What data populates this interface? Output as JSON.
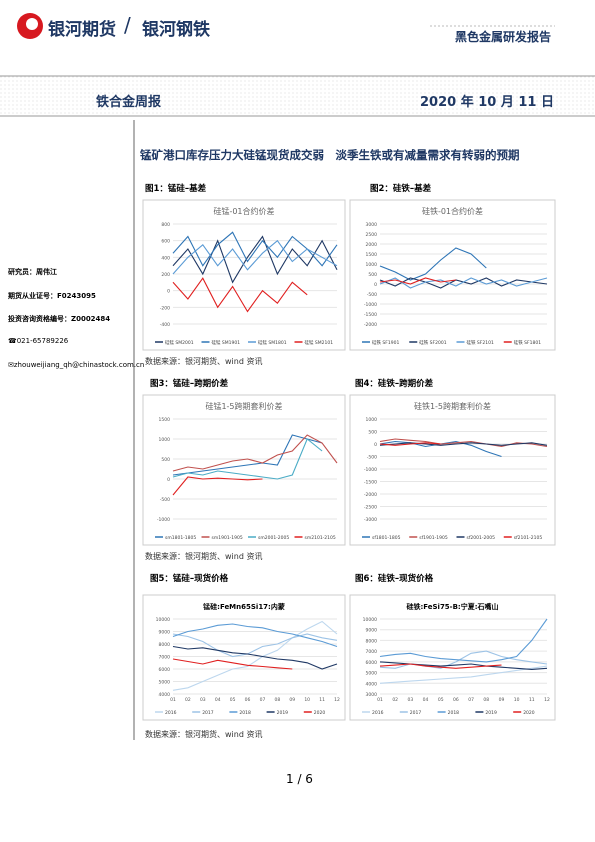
{
  "header": {
    "brand": "银河期货",
    "divider": "/",
    "brand2": "银河钢铁",
    "report_type": "黑色金属研发报告",
    "report_name": "铁合金周报",
    "date": "2020 年 10 月 11 日"
  },
  "sidebar": [
    "研究员：周伟江",
    "期货从业证号：F0243095",
    "投资咨询资格编号：Z0002484",
    "☎021-65789226",
    "✉zhouweijiang_qh@chinastock.com.cn"
  ],
  "heading": "锰矿港口库存压力大硅锰现货成交弱　淡季生铁或有减量需求有转弱的预期",
  "figures": [
    "图1：锰硅–基差",
    "图2：硅铁–基差",
    "图3：锰硅–跨期价差",
    "图4：硅铁–跨期价差",
    "图5：锰硅–现货价格",
    "图6：硅铁–现货价格"
  ],
  "sources": [
    "数据来源：银河期货、wind 资讯",
    "数据来源：银河期货、wind 资讯",
    "数据来源：银河期货、wind 资讯"
  ],
  "page": "1 / 6",
  "chart_data": [
    {
      "type": "line",
      "title": "硅锰-01合约价差",
      "ylim": [
        -400,
        800
      ],
      "yticks": [
        -400,
        -200,
        0,
        200,
        400,
        600,
        800
      ],
      "series": [
        {
          "name": "硅锰 SM2001",
          "color": "#1f3864",
          "values": [
            300,
            500,
            200,
            600,
            100,
            400,
            650,
            200,
            500,
            300,
            600,
            250
          ]
        },
        {
          "name": "硅锰 SM1901",
          "color": "#2e75b6",
          "values": [
            450,
            650,
            300,
            550,
            700,
            350,
            600,
            400,
            650,
            500,
            300,
            550
          ]
        },
        {
          "name": "硅锰 SM1801",
          "color": "#5b9bd5",
          "values": [
            200,
            400,
            550,
            300,
            500,
            250,
            450,
            600,
            350,
            500,
            400,
            300
          ]
        },
        {
          "name": "硅锰 SM2101",
          "color": "#e02020",
          "values": [
            100,
            -100,
            150,
            -200,
            50,
            -250,
            0,
            -150,
            100,
            -50,
            null,
            null
          ]
        }
      ]
    },
    {
      "type": "line",
      "title": "硅铁-01合约价差",
      "ylim": [
        -2000,
        3000
      ],
      "yticks": [
        -2000,
        -1500,
        -1000,
        -500,
        0,
        500,
        1000,
        1500,
        2000,
        2500,
        3000
      ],
      "series": [
        {
          "name": "硅铁 SF1901",
          "color": "#2e75b6",
          "values": [
            900,
            600,
            200,
            500,
            1200,
            1800,
            1500,
            800,
            null,
            null,
            null,
            null
          ]
        },
        {
          "name": "硅铁 SF2001",
          "color": "#1f3864",
          "values": [
            200,
            -100,
            300,
            100,
            -200,
            200,
            0,
            300,
            -100,
            200,
            100,
            0
          ]
        },
        {
          "name": "硅铁 SF2101",
          "color": "#5b9bd5",
          "values": [
            0,
            300,
            -200,
            100,
            200,
            -100,
            300,
            0,
            200,
            -100,
            100,
            300
          ]
        },
        {
          "name": "硅铁 SF1801",
          "color": "#e02020",
          "values": [
            100,
            200,
            0,
            300,
            100,
            200,
            null,
            null,
            null,
            null,
            null,
            null
          ]
        }
      ]
    },
    {
      "type": "line",
      "title": "硅锰1-5跨期套利价差",
      "ylim": [
        -1000,
        1500
      ],
      "yticks": [
        -1000,
        -500,
        0,
        500,
        1000,
        1500
      ],
      "series": [
        {
          "name": "sm1801-1805",
          "color": "#2e75b6",
          "values": [
            100,
            150,
            200,
            250,
            300,
            350,
            400,
            350,
            1100,
            1000,
            900,
            null
          ]
        },
        {
          "name": "sm1901-1905",
          "color": "#c0504d",
          "values": [
            200,
            300,
            250,
            350,
            450,
            500,
            400,
            600,
            700,
            1100,
            900,
            400
          ]
        },
        {
          "name": "sm2001-2005",
          "color": "#4bacc6",
          "values": [
            50,
            150,
            100,
            200,
            150,
            100,
            50,
            0,
            100,
            1000,
            700,
            null
          ]
        },
        {
          "name": "sm2101-2105",
          "color": "#e02020",
          "values": [
            -400,
            50,
            0,
            20,
            0,
            -20,
            0,
            null,
            null,
            null,
            null,
            null
          ]
        }
      ]
    },
    {
      "type": "line",
      "title": "硅铁1-5跨期套利价差",
      "ylim": [
        -3000,
        1000
      ],
      "yticks": [
        -3000,
        -2500,
        -2000,
        -1500,
        -1000,
        -500,
        0,
        500,
        1000
      ],
      "series": [
        {
          "name": "sf1801-1805",
          "color": "#2e75b6",
          "values": [
            0,
            100,
            50,
            -100,
            0,
            100,
            -50,
            -300,
            -500,
            null,
            null,
            null
          ]
        },
        {
          "name": "sf1901-1905",
          "color": "#c0504d",
          "values": [
            100,
            200,
            150,
            100,
            0,
            50,
            100,
            0,
            -100,
            50,
            0,
            -100
          ]
        },
        {
          "name": "sf2001-2005",
          "color": "#1f3864",
          "values": [
            -50,
            0,
            50,
            0,
            -50,
            0,
            50,
            0,
            -50,
            0,
            50,
            -50
          ]
        },
        {
          "name": "sf2101-2105",
          "color": "#e02020",
          "values": [
            0,
            -50,
            0,
            50,
            0,
            null,
            null,
            null,
            null,
            null,
            null,
            null
          ]
        }
      ]
    },
    {
      "type": "line",
      "title": "锰硅:FeMn65Si17:内蒙",
      "categories": [
        "01",
        "02",
        "03",
        "04",
        "05",
        "06",
        "07",
        "08",
        "09",
        "10",
        "11",
        "12"
      ],
      "ylim": [
        4000,
        10000
      ],
      "yticks": [
        4000,
        5000,
        6000,
        7000,
        8000,
        9000,
        10000
      ],
      "series": [
        {
          "name": "2016",
          "color": "#bdd7ee",
          "values": [
            4300,
            4500,
            5000,
            5500,
            6000,
            6200,
            7000,
            7500,
            8500,
            9200,
            9800,
            8800
          ]
        },
        {
          "name": "2017",
          "color": "#9dc3e6",
          "values": [
            8800,
            8600,
            8200,
            7500,
            7000,
            7200,
            7800,
            8000,
            8500,
            8800,
            8500,
            8300
          ]
        },
        {
          "name": "2018",
          "color": "#5b9bd5",
          "values": [
            8600,
            9000,
            9200,
            9500,
            9600,
            9400,
            9300,
            9000,
            8800,
            8500,
            8200,
            7800
          ]
        },
        {
          "name": "2019",
          "color": "#1f3864",
          "values": [
            7800,
            7600,
            7700,
            7500,
            7300,
            7200,
            7000,
            6800,
            6700,
            6500,
            6000,
            6400
          ]
        },
        {
          "name": "2020",
          "color": "#e02020",
          "values": [
            6800,
            6600,
            6400,
            6700,
            6500,
            6300,
            6200,
            6100,
            6000,
            null,
            null,
            null
          ]
        }
      ]
    },
    {
      "type": "line",
      "title": "硅铁:FeSi75-B:宁夏:石嘴山",
      "categories": [
        "01",
        "02",
        "03",
        "04",
        "05",
        "06",
        "07",
        "08",
        "09",
        "10",
        "11",
        "12"
      ],
      "ylim": [
        3000,
        10000
      ],
      "yticks": [
        3000,
        4000,
        5000,
        6000,
        7000,
        8000,
        9000,
        10000
      ],
      "series": [
        {
          "name": "2016",
          "color": "#bdd7ee",
          "values": [
            4000,
            4100,
            4200,
            4300,
            4400,
            4500,
            4600,
            4800,
            5000,
            5200,
            5400,
            5600
          ]
        },
        {
          "name": "2017",
          "color": "#9dc3e6",
          "values": [
            5500,
            5400,
            5800,
            5600,
            5400,
            6000,
            6800,
            7000,
            6500,
            6200,
            6000,
            5800
          ]
        },
        {
          "name": "2018",
          "color": "#5b9bd5",
          "values": [
            6500,
            6700,
            6800,
            6500,
            6300,
            6200,
            6100,
            6000,
            6200,
            6500,
            8000,
            10000
          ]
        },
        {
          "name": "2019",
          "color": "#1f3864",
          "values": [
            6000,
            5900,
            5800,
            5700,
            5600,
            5700,
            5800,
            5600,
            5500,
            5400,
            5300,
            5400
          ]
        },
        {
          "name": "2020",
          "color": "#e02020",
          "values": [
            5600,
            5700,
            5800,
            5600,
            5500,
            5400,
            5500,
            5600,
            5700,
            null,
            null,
            null
          ]
        }
      ]
    }
  ]
}
